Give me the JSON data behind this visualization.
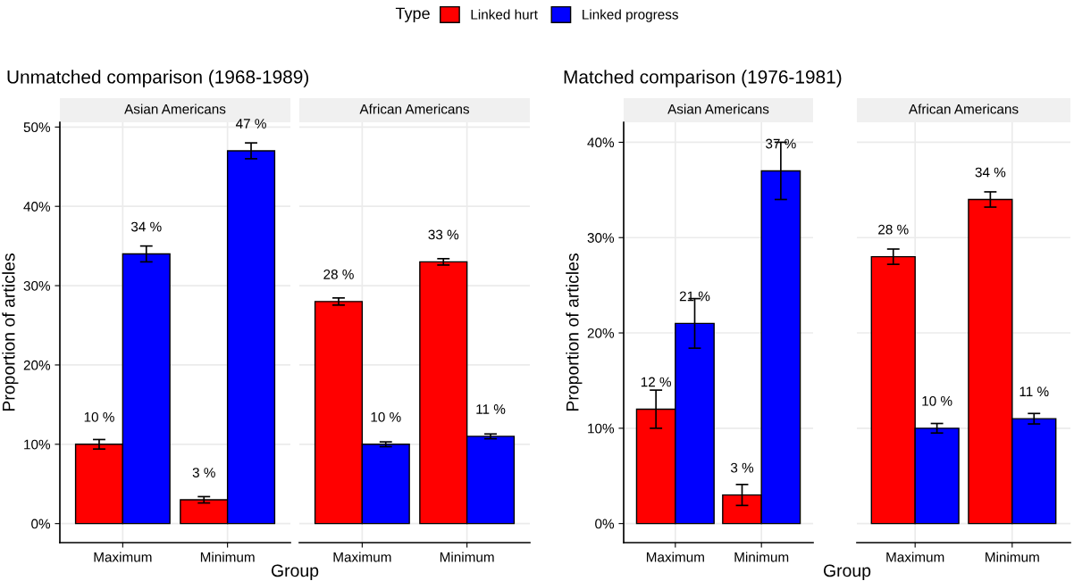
{
  "chart_data": [
    {
      "type": "bar",
      "title": "Unmatched comparison (1968-1989)",
      "subtitle": "Asian Americans",
      "xlabel": "Group",
      "ylabel": "Proportion of articles",
      "legend_title": "Type",
      "legend": "top",
      "grid": true,
      "categories": [
        "Maximum",
        "Minimum"
      ],
      "series": [
        {
          "name": "Linked hurt",
          "color": "#ff0000",
          "values": [
            10,
            3
          ],
          "errors": [
            [
              9.4,
              10.6
            ],
            [
              2.6,
              3.4
            ]
          ],
          "value_labels": [
            "10 %",
            "3 %"
          ]
        },
        {
          "name": "Linked progress",
          "color": "#0000ff",
          "values": [
            34,
            47
          ],
          "errors": [
            [
              33,
              35
            ],
            [
              46,
              48
            ]
          ],
          "value_labels": [
            "34 %",
            "47 %"
          ]
        }
      ],
      "ylim": [
        -2.4,
        50.6
      ],
      "yticks": [
        {
          "value": 0,
          "label": "0%"
        },
        {
          "value": 10,
          "label": "10%"
        },
        {
          "value": 20,
          "label": "20%"
        },
        {
          "value": 30,
          "label": "30%"
        },
        {
          "value": 40,
          "label": "40%"
        },
        {
          "value": 50,
          "label": "50%"
        }
      ]
    },
    {
      "type": "bar",
      "subtitle": "African Americans",
      "grid": true,
      "tick_labels": "x",
      "categories": [
        "Maximum",
        "Minimum"
      ],
      "series": [
        {
          "color": "#ff0000",
          "values": [
            28,
            33
          ],
          "errors": [
            [
              27.55,
              28.45
            ],
            [
              32.6,
              33.4
            ]
          ],
          "value_labels": [
            "28 %",
            "33 %"
          ]
        },
        {
          "color": "#0000ff",
          "values": [
            10,
            11
          ],
          "errors": [
            [
              9.7,
              10.3
            ],
            [
              10.7,
              11.3
            ]
          ],
          "value_labels": [
            "10 %",
            "11 %"
          ]
        }
      ],
      "ylim": [
        -2.4,
        50.6
      ],
      "yticks": [
        {
          "value": 0,
          "label": null
        },
        {
          "value": 10,
          "label": null
        },
        {
          "value": 20,
          "label": null
        },
        {
          "value": 30,
          "label": null
        },
        {
          "value": 40,
          "label": null
        },
        {
          "value": 50,
          "label": null
        }
      ]
    },
    {
      "type": "bar",
      "title": "Matched comparison (1976-1981)",
      "subtitle": "Asian Americans",
      "xlabel": "Group",
      "ylabel": "Proportion of articles",
      "grid": true,
      "categories": [
        "Maximum",
        "Minimum"
      ],
      "series": [
        {
          "color": "#ff0000",
          "values": [
            12,
            3
          ],
          "errors": [
            [
              10,
              14
            ],
            [
              1.9,
              4.1
            ]
          ],
          "value_labels": [
            "12 %",
            "3 %"
          ]
        },
        {
          "color": "#0000ff",
          "values": [
            21,
            37
          ],
          "errors": [
            [
              18.4,
              23.6
            ],
            [
              34,
              40
            ]
          ],
          "value_labels": [
            "21 %",
            "37 %"
          ]
        }
      ],
      "ylim": [
        -2.0,
        42.1
      ],
      "yticks": [
        {
          "value": 0,
          "label": "0%"
        },
        {
          "value": 10,
          "label": "10%"
        },
        {
          "value": 20,
          "label": "20%"
        },
        {
          "value": 30,
          "label": "30%"
        },
        {
          "value": 40,
          "label": "40%"
        }
      ]
    },
    {
      "type": "bar",
      "subtitle": "African Americans",
      "grid": true,
      "tick_labels": "x",
      "categories": [
        "Maximum",
        "Minimum"
      ],
      "series": [
        {
          "color": "#ff0000",
          "values": [
            28,
            34
          ],
          "errors": [
            [
              27.2,
              28.8
            ],
            [
              33.2,
              34.8
            ]
          ],
          "value_labels": [
            "28 %",
            "34 %"
          ]
        },
        {
          "color": "#0000ff",
          "values": [
            10,
            11
          ],
          "errors": [
            [
              9.5,
              10.5
            ],
            [
              10.45,
              11.55
            ]
          ],
          "value_labels": [
            "10 %",
            "11 %"
          ]
        }
      ],
      "ylim": [
        -2.0,
        42.1
      ],
      "yticks": [
        {
          "value": 0,
          "label": null
        },
        {
          "value": 10,
          "label": null
        },
        {
          "value": 20,
          "label": null
        },
        {
          "value": 30,
          "label": null
        },
        {
          "value": 40,
          "label": null
        }
      ]
    }
  ]
}
